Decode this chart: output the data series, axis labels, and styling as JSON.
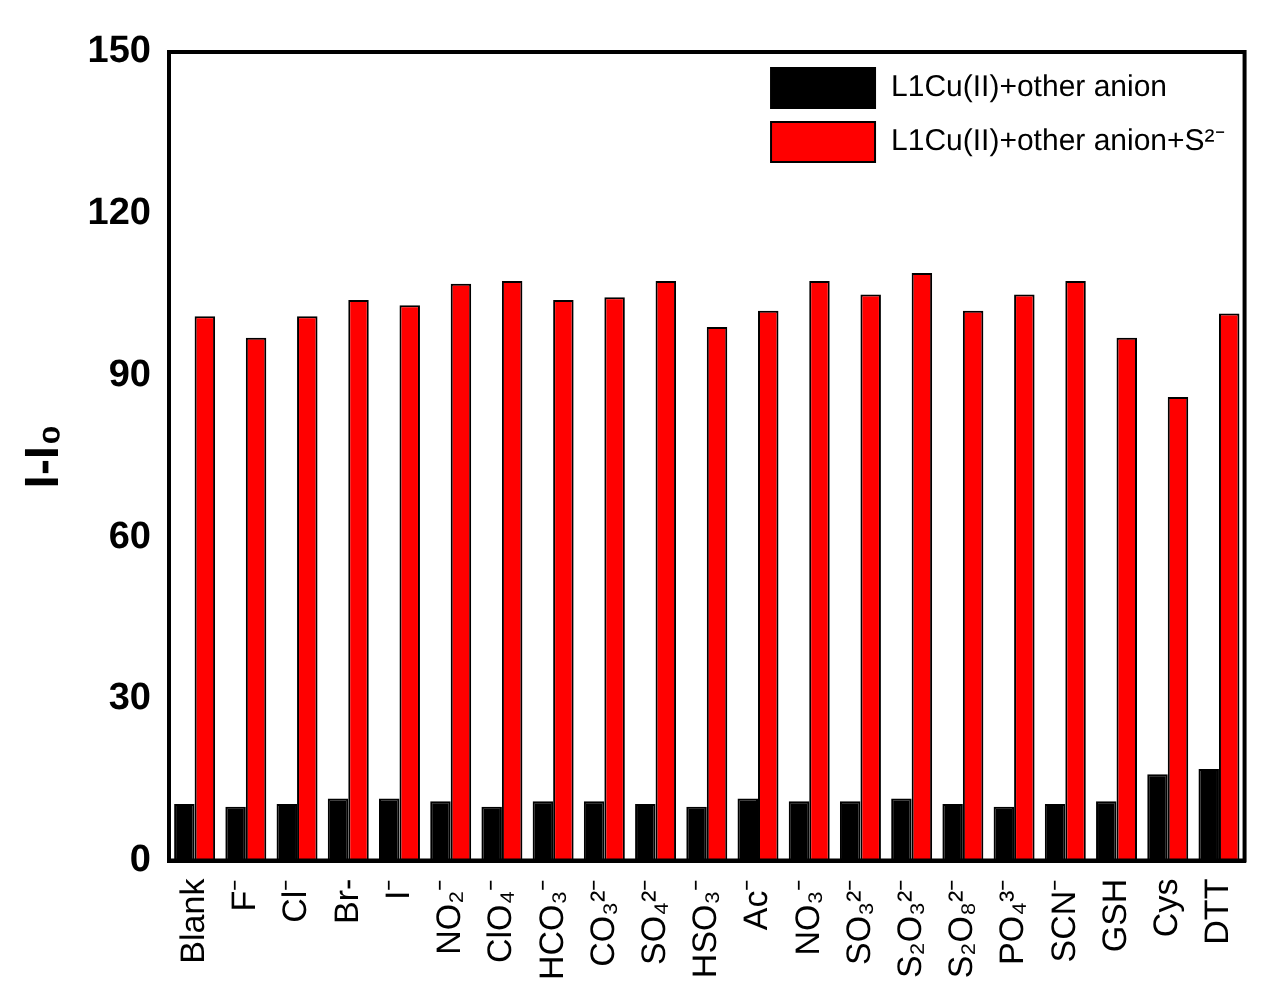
{
  "chart_data": {
    "type": "bar",
    "ylabel": "I-I₀",
    "categories": [
      "Blank",
      "F⁻",
      "Cl⁻",
      "Br-",
      "I⁻",
      "NO₂⁻",
      "ClO₄⁻",
      "HCO₃⁻",
      "CO₃²⁻",
      "SO₄²⁻",
      "HSO₃⁻",
      "Ac⁻",
      "NO₃⁻",
      "SO₃²⁻",
      "S₂O₃²⁻",
      "S₂O₈²⁻",
      "PO₄³⁻",
      "SCN⁻",
      "GSH",
      "Cys",
      "DTT"
    ],
    "series": [
      {
        "name": "L1Cu(II)+other anion",
        "color": "#000000",
        "values": [
          10.5,
          10,
          10.5,
          11.5,
          11.5,
          11,
          10,
          11,
          11,
          10.5,
          10,
          11.5,
          11,
          11,
          11.5,
          10.5,
          10,
          10.5,
          11,
          16,
          17
        ]
      },
      {
        "name": "L1Cu(II)+other anion+S²⁻",
        "color": "#ff0000",
        "values": [
          101,
          97,
          101,
          104,
          103,
          107,
          107.5,
          104,
          104.5,
          107.5,
          99,
          102,
          107.5,
          105,
          109,
          102,
          105,
          107.5,
          97,
          86,
          101.5
        ]
      }
    ],
    "ylim": [
      0,
      150
    ],
    "yticks": [
      0,
      30,
      60,
      90,
      120,
      150
    ],
    "grid": false,
    "legend": "top right"
  }
}
